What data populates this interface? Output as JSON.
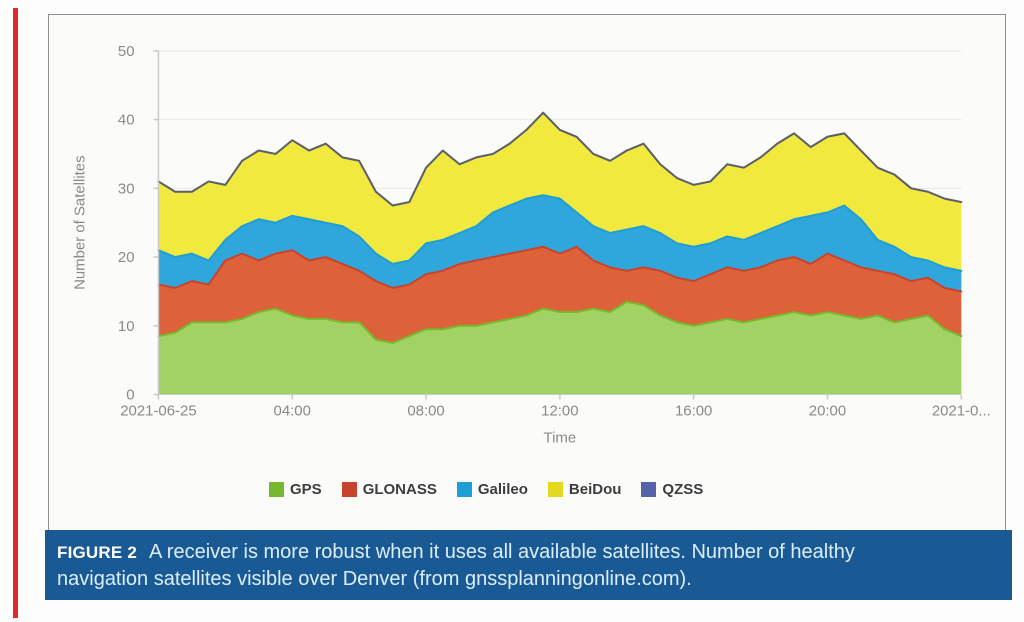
{
  "page": {
    "background": "#fdfdfd",
    "accent_stripe_color": "#e8252b"
  },
  "figure_caption": {
    "label": "FIGURE 2",
    "line1": "A receiver is more robust when it uses all available satellites. Number of healthy",
    "line2": "navigation satellites visible over Denver (from gnssplanningonline.com).",
    "bar_color": "#1a5a94",
    "label_color": "#ffffff",
    "text_color": "#ddeefb"
  },
  "chart_data": {
    "type": "area",
    "stacked": true,
    "title": "",
    "xlabel": "Time",
    "ylabel": "Number of Satellites",
    "ylim": [
      0,
      50
    ],
    "yticks": [
      0,
      10,
      20,
      30,
      40,
      50
    ],
    "x_tick_labels": [
      "2021-06-25",
      "04:00",
      "08:00",
      "12:00",
      "16:00",
      "20:00",
      "2021-0..."
    ],
    "x_tick_indices": [
      0,
      8,
      16,
      24,
      32,
      40,
      48
    ],
    "n_points": 49,
    "grid": "horizontal",
    "grid_color": "#e8e8e6",
    "axis_color": "#c9c9c9",
    "label_color": "#8a8a8a",
    "legend_position": "bottom",
    "series": [
      {
        "name": "GPS",
        "color": "#76b82f",
        "fill": "#a2d264",
        "values": [
          8.5,
          9,
          10.5,
          10.5,
          10.5,
          11,
          12,
          12.5,
          11.5,
          11,
          11,
          10.5,
          10.5,
          8,
          7.5,
          8.5,
          9.5,
          9.5,
          10,
          10,
          10.5,
          11,
          11.5,
          12.5,
          12,
          12,
          12.5,
          12,
          13.5,
          13,
          11.5,
          10.5,
          10,
          10.5,
          11,
          10.5,
          11,
          11.5,
          12,
          11.5,
          12,
          11.5,
          11,
          11.5,
          10.5,
          11,
          11.5,
          9.5,
          8.5
        ]
      },
      {
        "name": "GLONASS",
        "color": "#c8432c",
        "fill": "#de6239",
        "values": [
          7.5,
          6.5,
          6,
          5.5,
          9,
          9.5,
          7.5,
          8,
          9.5,
          8.5,
          9,
          8.5,
          7.5,
          8.5,
          8,
          7.5,
          8,
          8.5,
          9,
          9.5,
          9.5,
          9.5,
          9.5,
          9,
          8.5,
          9.5,
          7,
          6.5,
          4.5,
          5.5,
          6.5,
          6.5,
          6.5,
          7,
          7.5,
          7.5,
          7.5,
          8,
          8,
          7.5,
          8.5,
          8,
          7.5,
          6.5,
          7,
          5.5,
          5.5,
          6,
          6.5
        ]
      },
      {
        "name": "Galileo",
        "color": "#1f9ed6",
        "fill": "#2fa6dc",
        "values": [
          5,
          4.5,
          4,
          3.5,
          3,
          4,
          6,
          4.5,
          5,
          6,
          5,
          5.5,
          5,
          4,
          3.5,
          3.5,
          4.5,
          4.5,
          4.5,
          5,
          6.5,
          7,
          7.5,
          7.5,
          8,
          5,
          5,
          5,
          6,
          6,
          5.5,
          5,
          5,
          4.5,
          4.5,
          4.5,
          5,
          5,
          5.5,
          7,
          6,
          8,
          7,
          4.5,
          4,
          3.5,
          2.5,
          3,
          3
        ]
      },
      {
        "name": "BeiDou",
        "color": "#e3d921",
        "fill": "#f2e93e",
        "values": [
          10,
          9.5,
          9,
          11.5,
          8,
          9.5,
          10,
          10,
          11,
          10,
          11.5,
          10,
          11,
          9,
          8.5,
          8.5,
          11,
          13,
          10,
          10,
          8.5,
          9,
          10,
          12,
          10,
          11,
          10.5,
          10.5,
          11.5,
          12,
          10,
          9.5,
          9,
          9,
          10.5,
          10.5,
          11,
          12,
          12.5,
          10,
          11,
          10.5,
          10,
          10.5,
          10.5,
          10,
          10,
          10,
          10
        ]
      },
      {
        "name": "QZSS",
        "color": "#5763a8",
        "line_color": "#5b5e6e",
        "values": [
          0,
          0,
          0,
          0,
          0,
          0,
          0,
          0,
          0,
          0,
          0,
          0,
          0,
          0,
          0,
          0,
          0,
          0,
          0,
          0,
          0,
          0,
          0,
          0,
          0,
          0,
          0,
          0,
          0,
          0,
          0,
          0,
          0,
          0,
          0,
          0,
          0,
          0,
          0,
          0,
          0,
          0,
          0,
          0,
          0,
          0,
          0,
          0,
          0
        ]
      }
    ]
  }
}
